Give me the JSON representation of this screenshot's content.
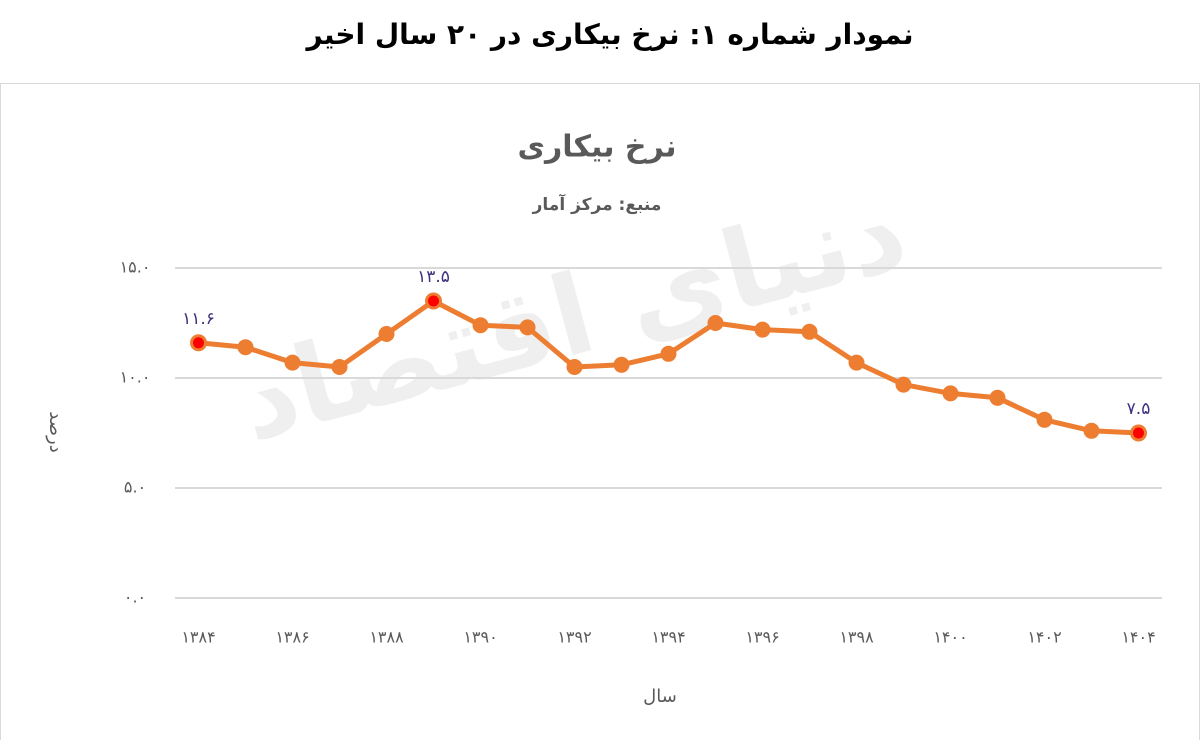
{
  "header": {
    "title": "نمودار شماره ۱: نرخ بیکاری در ۲۰ سال اخیر"
  },
  "chart_data": {
    "type": "line",
    "title": "نرخ بیکاری",
    "subtitle": "منبع: مرکز آمار",
    "watermark": "دنیای اقتصاد",
    "x_label": "سال",
    "y_label": "درصد",
    "categories": [
      "۱۳۸۴",
      null,
      "۱۳۸۶",
      null,
      "۱۳۸۸",
      null,
      "۱۳۹۰",
      null,
      "۱۳۹۲",
      null,
      "۱۳۹۴",
      null,
      "۱۳۹۶",
      null,
      "۱۳۹۸",
      null,
      "۱۴۰۰",
      null,
      "۱۴۰۲",
      null,
      "۱۴۰۴"
    ],
    "values": [
      11.6,
      11.4,
      10.7,
      10.5,
      12.0,
      13.5,
      12.4,
      12.3,
      10.5,
      10.6,
      11.1,
      12.5,
      12.2,
      12.1,
      10.7,
      9.7,
      9.3,
      9.1,
      8.1,
      7.6,
      7.5
    ],
    "value_labels": [
      "۱۱.۶",
      null,
      null,
      null,
      null,
      "۱۳.۵",
      null,
      null,
      null,
      null,
      null,
      null,
      null,
      null,
      null,
      null,
      null,
      null,
      null,
      null,
      "۷.۵"
    ],
    "color": "#ed7d31",
    "highlight_color": "#ff0000",
    "ylim": [
      0,
      15
    ],
    "yticks": [
      {
        "value": 0,
        "label": "۰.۰"
      },
      {
        "value": 5,
        "label": "۵.۰"
      },
      {
        "value": 10,
        "label": "۱۰.۰"
      },
      {
        "value": 15,
        "label": "۱۵.۰"
      }
    ],
    "grid": true
  }
}
